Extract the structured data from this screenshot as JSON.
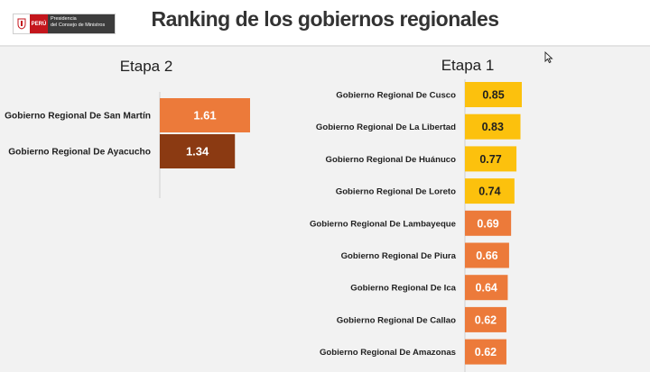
{
  "header": {
    "title": "Ranking de los gobiernos regionales",
    "logo": {
      "country": "PERÚ",
      "institution_line1": "Presidencia",
      "institution_line2": "del Consejo de Ministros"
    }
  },
  "colors": {
    "dark_orange": "#8b3a12",
    "orange": "#ec7a3a",
    "yellow": "#fcc10d",
    "text": "#1f1f1f",
    "panel": "#f2f2f2"
  },
  "chart_data": [
    {
      "type": "bar",
      "orientation": "horizontal",
      "title": "Etapa 2",
      "categories": [
        "Gobierno Regional De San Martín",
        "Gobierno Regional De Ayacucho"
      ],
      "values": [
        1.61,
        1.34
      ],
      "labels": [
        "1.61",
        "1.34"
      ],
      "colors": [
        "#ec7a3a",
        "#8b3a12"
      ],
      "xlim": [
        0,
        1.9
      ]
    },
    {
      "type": "bar",
      "orientation": "horizontal",
      "title": "Etapa 1",
      "categories": [
        "Gobierno Regional De Cusco",
        "Gobierno Regional De La Libertad",
        "Gobierno Regional De Huánuco",
        "Gobierno Regional De Loreto",
        "Gobierno Regional De Lambayeque",
        "Gobierno Regional De Piura",
        "Gobierno Regional De Ica",
        "Gobierno Regional De Callao",
        "Gobierno Regional De Amazonas"
      ],
      "values": [
        0.85,
        0.83,
        0.77,
        0.74,
        0.69,
        0.66,
        0.64,
        0.62,
        0.62
      ],
      "labels": [
        "0.85",
        "0.83",
        "0.77",
        "0.74",
        "0.69",
        "0.66",
        "0.64",
        "0.62",
        "0.62"
      ],
      "colors": [
        "#fcc10d",
        "#fcc10d",
        "#fcc10d",
        "#fcc10d",
        "#ec7a3a",
        "#ec7a3a",
        "#ec7a3a",
        "#ec7a3a",
        "#ec7a3a"
      ],
      "xlim": [
        0,
        1.0
      ]
    }
  ]
}
